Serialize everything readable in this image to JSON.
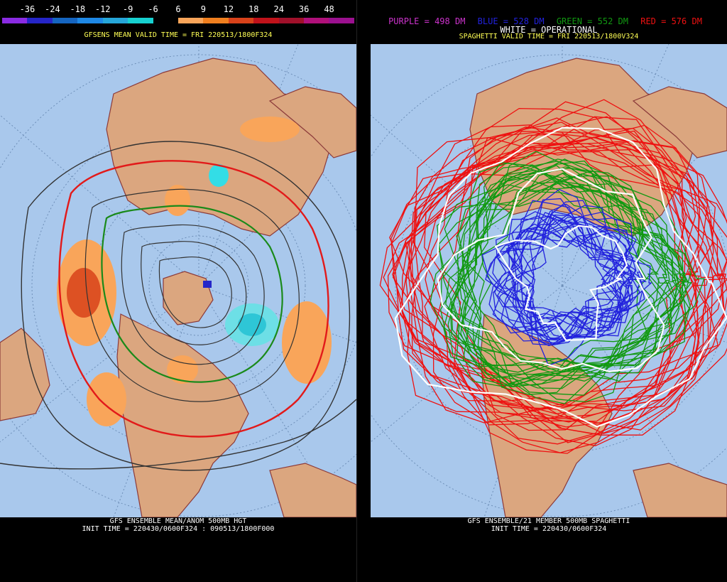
{
  "left": {
    "colorbar": {
      "labels": [
        "-36",
        "-24",
        "-18",
        "-12",
        "-9",
        "-6",
        "6",
        "9",
        "12",
        "18",
        "24",
        "36",
        "48"
      ],
      "colors": [
        "#8a2be2",
        "#2525c8",
        "#1565c0",
        "#1e88e5",
        "#26a6d9",
        "#17d1d1",
        "#000000",
        "#f9a55a",
        "#f07f1f",
        "#d8421a",
        "#c0121a",
        "#a0102a",
        "#b0107a",
        "#9b108f"
      ]
    },
    "title": "GFSENS MEAN VALID TIME = FRI 220513/1800F324",
    "footer_line1": "GFS ENSEMBLE MEAN/ANOM 500MB HGT",
    "footer_line2": "INIT TIME = 220430/0600F324 : 090513/1800F000"
  },
  "right": {
    "legend": {
      "purple": "PURPLE = 498 DM",
      "blue": "BLUE = 528 DM",
      "green": "GREEN = 552 DM",
      "red": "RED = 576 DM",
      "white": "WHITE = OPERATIONAL",
      "colors": {
        "purple": "#cc33cc",
        "blue": "#2222dd",
        "green": "#119911",
        "red": "#ee1111",
        "white": "#ffffff"
      }
    },
    "title": "SPAGHETTI VALID TIME = FRI 220513/1800V324",
    "footer_line1": "GFS ENSEMBLE/21 MEMBER 500MB SPAGHETTI",
    "footer_line2": "INIT TIME = 220430/0600F324"
  },
  "map_colors": {
    "ocean": "#a9c8ec",
    "land": "#dba67f",
    "border": "#8b3a3a",
    "grid": "#6e8fb8"
  }
}
